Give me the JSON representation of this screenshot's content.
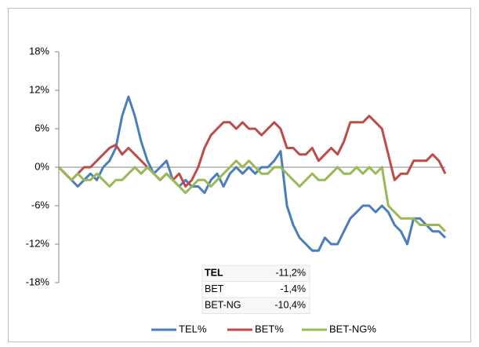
{
  "chart_data": {
    "type": "line",
    "series": [
      {
        "name": "TEL%",
        "color": "#4a7ebb",
        "values": [
          0,
          -1,
          -2,
          -3,
          -2,
          -1,
          -2,
          0,
          1,
          3,
          8,
          11,
          8,
          4,
          1,
          -1,
          0,
          1,
          -2,
          -3,
          -2,
          -3,
          -3,
          -4,
          -2,
          -1,
          -3,
          -1,
          0,
          -1,
          0,
          -1,
          0,
          0,
          1,
          2.5,
          -6,
          -9,
          -11,
          -12,
          -13,
          -13,
          -11,
          -12,
          -12,
          -10,
          -8,
          -7,
          -6,
          -6,
          -7,
          -6,
          -7,
          -9,
          -10,
          -12,
          -8,
          -8,
          -9,
          -10,
          -10,
          -11
        ]
      },
      {
        "name": "BET%",
        "color": "#be4b48",
        "values": [
          0,
          -1,
          -2,
          -1,
          0,
          0,
          1,
          2,
          3,
          3.5,
          2,
          3,
          2,
          1,
          0,
          -1,
          -2,
          -1,
          -2,
          -1,
          -3,
          -2,
          0,
          3,
          5,
          6,
          7,
          7,
          6,
          7,
          6,
          6,
          5,
          6,
          7,
          6,
          3,
          3,
          2,
          2,
          3,
          1,
          2,
          3,
          2,
          4,
          7,
          7,
          7,
          8,
          7,
          6,
          2,
          -2,
          -1,
          -1,
          1,
          1,
          1,
          2,
          1,
          -1
        ]
      },
      {
        "name": "BET-NG%",
        "color": "#98b954",
        "values": [
          0,
          -1,
          -2,
          -1,
          -2,
          -2,
          -1,
          -2,
          -3,
          -2,
          -2,
          -1,
          0,
          -1,
          0,
          -1,
          -2,
          -1,
          -2,
          -3,
          -4,
          -3,
          -2,
          -2,
          -3,
          -2,
          -1,
          0,
          1,
          0,
          1,
          0,
          -1,
          -1,
          0,
          0,
          -1,
          -2,
          -3,
          -2,
          -1,
          -2,
          -2,
          -1,
          0,
          -1,
          -1,
          0,
          -1,
          0,
          -1,
          0,
          -6,
          -7,
          -8,
          -8,
          -8,
          -9,
          -9,
          -9,
          -9,
          -10
        ]
      }
    ],
    "ylim": [
      -18,
      18
    ],
    "yticks": [
      {
        "value": -18,
        "label": "-18%"
      },
      {
        "value": -12,
        "label": "-12%"
      },
      {
        "value": -6,
        "label": "-6%"
      },
      {
        "value": 0,
        "label": "0%"
      },
      {
        "value": 6,
        "label": "6%"
      },
      {
        "value": 12,
        "label": "12%"
      },
      {
        "value": 18,
        "label": "18%"
      }
    ],
    "legend": "bottom",
    "summary_table": [
      [
        "TEL",
        "-11,2%"
      ],
      [
        "BET",
        "-1,4%"
      ],
      [
        "BET-NG",
        "-10,4%"
      ]
    ]
  }
}
